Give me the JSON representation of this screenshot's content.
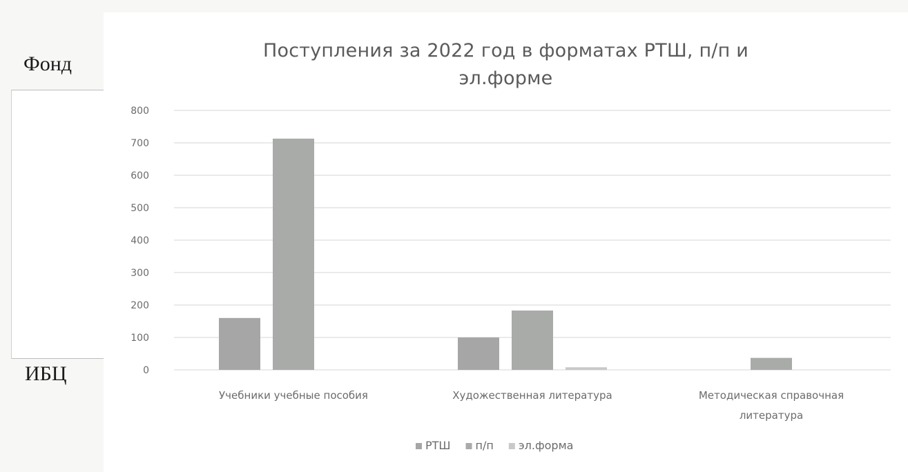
{
  "side": {
    "top_label": "Фонд",
    "bottom_label": "ИБЦ"
  },
  "chart_data": {
    "type": "bar",
    "title_lines": [
      "Поступления за 2022 год в форматах РТШ, п/п и",
      "эл.форме"
    ],
    "categories": [
      [
        "Учебники учебные пособия"
      ],
      [
        "Художественная литература"
      ],
      [
        "Методическая справочная",
        "литература"
      ]
    ],
    "series": [
      {
        "name": "РТШ",
        "values": [
          160,
          100,
          0
        ],
        "color": "#a6a6a6"
      },
      {
        "name": "п/п",
        "values": [
          713,
          183,
          37
        ],
        "color": "#a9aba9"
      },
      {
        "name": "эл.форма",
        "values": [
          0,
          8,
          0
        ],
        "color": "#c9c9c9"
      }
    ],
    "ylim": [
      0,
      800
    ],
    "yticks": [
      "0",
      "100",
      "200",
      "300",
      "400",
      "500",
      "600",
      "700",
      "800"
    ],
    "grid": true,
    "legend_position": "bottom"
  }
}
